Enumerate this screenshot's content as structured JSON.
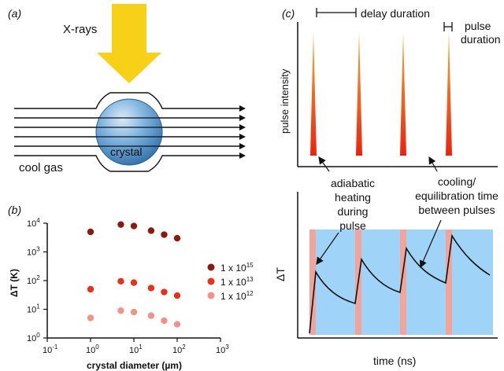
{
  "panel_a": {
    "label": "(a)",
    "xray_label": "X-rays",
    "crystal_label": "crystal",
    "gas_label": "cool gas",
    "colors": {
      "arrow": "#f7d117",
      "crystal": "#5a9bd5",
      "lines": "#111111"
    }
  },
  "panel_b": {
    "label": "(b)",
    "xlabel": "crystal diameter (µm)",
    "ylabel": "ΔT (K)",
    "x_ticks": [
      "10",
      "10",
      "10",
      "10",
      "10"
    ],
    "x_tick_exps": [
      "-1",
      "0",
      "1",
      "2",
      "3"
    ],
    "y_ticks": [
      "10",
      "10",
      "10",
      "10",
      "10"
    ],
    "y_tick_exps": [
      "0",
      "1",
      "2",
      "3",
      "4"
    ],
    "legend": [
      {
        "base": "1 x 10",
        "exp": "15",
        "color": "#8b1a10"
      },
      {
        "base": "1 x 10",
        "exp": "13",
        "color": "#e8311c"
      },
      {
        "base": "1 x 10",
        "exp": "12",
        "color": "#f4928a"
      }
    ]
  },
  "panel_c": {
    "label": "(c)",
    "delay_label": "delay duration",
    "pulse_label_1": "pulse",
    "pulse_label_2": "duration",
    "ylabel_top": "pulse intensity",
    "ylabel_bottom": "ΔT",
    "xlabel": "time (ns)",
    "annot_left": [
      "adiabatic",
      "heating",
      "during",
      "pulse"
    ],
    "annot_right": [
      "cooling/",
      "equilibration time",
      "between pulses"
    ],
    "colors": {
      "heating": "#f2a49a",
      "cooling": "#9fd3f7",
      "pulse_top": "#f7a33a",
      "pulse_bottom": "#e8240f"
    }
  },
  "chart_data": {
    "type": "scatter",
    "xlabel": "crystal diameter (µm)",
    "ylabel": "ΔT (K)",
    "x_scale": "log",
    "y_scale": "log",
    "xlim": [
      0.1,
      1000
    ],
    "ylim": [
      1,
      10000
    ],
    "legend_position": "right",
    "series": [
      {
        "name": "1 x 10^15",
        "color": "#8b1a10",
        "x": [
          1,
          5,
          10,
          25,
          50,
          100
        ],
        "y": [
          5000,
          9000,
          8000,
          5500,
          4000,
          3000
        ]
      },
      {
        "name": "1 x 10^13",
        "color": "#e8311c",
        "x": [
          1,
          5,
          10,
          25,
          50,
          100
        ],
        "y": [
          50,
          95,
          85,
          55,
          40,
          30
        ]
      },
      {
        "name": "1 x 10^12",
        "color": "#f4928a",
        "x": [
          1,
          5,
          10,
          25,
          50,
          100
        ],
        "y": [
          5,
          9,
          8,
          6,
          4,
          3
        ]
      }
    ]
  }
}
